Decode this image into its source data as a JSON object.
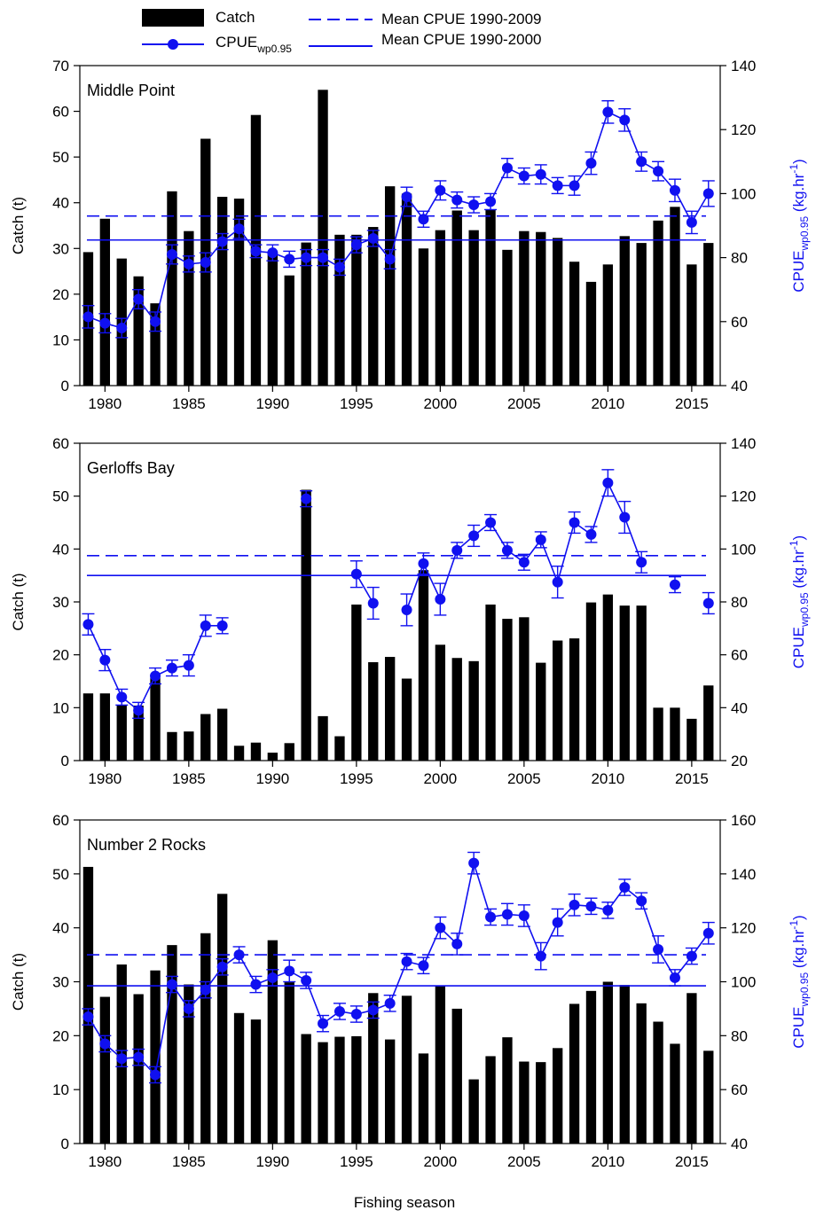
{
  "figure": {
    "xlabel": "Fishing season",
    "legend": {
      "catch": "Catch",
      "cpue_main": "CPUE",
      "cpue_sub": "wp0.95",
      "mean_long": "Mean CPUE 1990-2009",
      "mean_short": "Mean CPUE 1990-2000"
    },
    "ylabel_left": "Catch (t)",
    "ylabel_right": {
      "main": "CPUE",
      "sub": "wp0.95",
      "unit_open": " (kg.hr",
      "unit_sup": "-1",
      "unit_close": ")"
    },
    "colors": {
      "bars": "#000000",
      "cpue": "#1010f0"
    }
  },
  "chart_data": [
    {
      "type": "bar",
      "title": "Middle Point",
      "x": [
        1979,
        1980,
        1981,
        1982,
        1983,
        1984,
        1985,
        1986,
        1987,
        1988,
        1989,
        1990,
        1991,
        1992,
        1993,
        1994,
        1995,
        1996,
        1997,
        1998,
        1999,
        2000,
        2001,
        2002,
        2003,
        2004,
        2005,
        2006,
        2007,
        2008,
        2009,
        2010,
        2011,
        2012,
        2013,
        2014,
        2015,
        2016
      ],
      "xlim": [
        1978.5,
        2016.7
      ],
      "xticks": [
        1980,
        1985,
        1990,
        1995,
        2000,
        2005,
        2010,
        2015
      ],
      "catch": [
        29.2,
        36.5,
        27.8,
        23.9,
        18,
        42.5,
        33.8,
        54,
        41.3,
        40.9,
        59.2,
        29.3,
        24.1,
        31.3,
        64.7,
        33,
        33,
        34.7,
        43.6,
        42,
        30,
        34,
        38.3,
        34,
        38.5,
        29.7,
        33.8,
        33.6,
        32.3,
        27.1,
        22.7,
        26.5,
        32.7,
        31.2,
        36.1,
        39.1,
        26.5,
        31.2
      ],
      "ylim_left": [
        0,
        70
      ],
      "yticks_left": [
        0,
        10,
        20,
        30,
        40,
        50,
        60,
        70
      ],
      "cpue": [
        61.5,
        59.5,
        58,
        67,
        60,
        81,
        78,
        78.5,
        85,
        89,
        82,
        81.5,
        79.5,
        80,
        80,
        77,
        84,
        86,
        79.5,
        99,
        92,
        101,
        98,
        96.5,
        97.5,
        108,
        105.5,
        106,
        102.5,
        102.5,
        109.5,
        125.5,
        123,
        110,
        107,
        101,
        91,
        100
      ],
      "cpue_err": [
        3.5,
        3,
        3,
        3,
        3,
        3,
        2.5,
        3,
        2.5,
        3,
        2,
        2.5,
        2.5,
        2.5,
        2.5,
        2.5,
        2.5,
        2.5,
        3,
        3,
        2.5,
        3,
        2.5,
        2.5,
        2.5,
        3,
        2.5,
        3,
        2.5,
        3,
        3.5,
        3.5,
        3.5,
        3,
        3,
        3.5,
        3.5,
        4
      ],
      "ylim_right": [
        40,
        140
      ],
      "yticks_right": [
        40,
        60,
        80,
        100,
        120,
        140
      ],
      "mean_long": 93,
      "mean_short": 85.5
    },
    {
      "type": "bar",
      "title": "Gerloffs Bay",
      "x": [
        1979,
        1980,
        1981,
        1982,
        1983,
        1984,
        1985,
        1986,
        1987,
        1988,
        1989,
        1990,
        1991,
        1992,
        1993,
        1994,
        1995,
        1996,
        1997,
        1998,
        1999,
        2000,
        2001,
        2002,
        2003,
        2004,
        2005,
        2006,
        2007,
        2008,
        2009,
        2010,
        2011,
        2012,
        2013,
        2014,
        2015,
        2016
      ],
      "xlim": [
        1978.5,
        2016.7
      ],
      "xticks": [
        1980,
        1985,
        1990,
        1995,
        2000,
        2005,
        2010,
        2015
      ],
      "catch": [
        12.7,
        12.7,
        10.4,
        10.4,
        15.7,
        5.4,
        5.5,
        8.8,
        9.8,
        2.8,
        3.4,
        1.5,
        3.3,
        51.2,
        8.4,
        4.6,
        29.5,
        18.6,
        19.6,
        15.5,
        36,
        21.9,
        19.4,
        18.8,
        29.5,
        26.8,
        27.1,
        18.5,
        22.7,
        23.1,
        29.9,
        31.4,
        29.3,
        29.3,
        10,
        10,
        7.9,
        14.2
      ],
      "ylim_left": [
        0,
        60
      ],
      "yticks_left": [
        0,
        10,
        20,
        30,
        40,
        50,
        60
      ],
      "cpue": [
        71.5,
        58,
        44,
        39,
        52,
        55,
        56,
        71,
        71,
        null,
        null,
        null,
        null,
        119,
        null,
        null,
        90.5,
        79.5,
        null,
        77,
        94.5,
        81,
        99.5,
        105,
        110,
        99.5,
        95,
        103.5,
        87.5,
        110,
        105.5,
        125,
        112,
        95,
        null,
        86.5,
        null,
        79.5
      ],
      "cpue_err": [
        4,
        4,
        3,
        3,
        3,
        3,
        4,
        4,
        3,
        null,
        null,
        null,
        null,
        3,
        null,
        null,
        5,
        6,
        null,
        6,
        4,
        6,
        3,
        4,
        3,
        3,
        3,
        3,
        6,
        4,
        3,
        5,
        6,
        4,
        null,
        3,
        null,
        4
      ],
      "ylim_right": [
        20,
        140
      ],
      "yticks_right": [
        20,
        40,
        60,
        80,
        100,
        120,
        140
      ],
      "mean_long": 97.5,
      "mean_short": 90
    },
    {
      "type": "bar",
      "title": "Number 2 Rocks",
      "x": [
        1979,
        1980,
        1981,
        1982,
        1983,
        1984,
        1985,
        1986,
        1987,
        1988,
        1989,
        1990,
        1991,
        1992,
        1993,
        1994,
        1995,
        1996,
        1997,
        1998,
        1999,
        2000,
        2001,
        2002,
        2003,
        2004,
        2005,
        2006,
        2007,
        2008,
        2009,
        2010,
        2011,
        2012,
        2013,
        2014,
        2015,
        2016
      ],
      "xlim": [
        1978.5,
        2016.7
      ],
      "xticks": [
        1980,
        1985,
        1990,
        1995,
        2000,
        2005,
        2010,
        2015
      ],
      "catch": [
        51.3,
        27.2,
        33.2,
        27.7,
        32.1,
        36.8,
        29.5,
        39,
        46.3,
        24.2,
        23,
        37.7,
        29.9,
        20.3,
        18.8,
        19.8,
        19.9,
        27.9,
        19.3,
        27.4,
        16.7,
        29.3,
        25,
        11.9,
        16.2,
        19.7,
        15.2,
        15.1,
        17.7,
        25.9,
        28.3,
        30,
        29.4,
        26,
        22.6,
        18.5,
        27.9,
        17.2
      ],
      "ylim_left": [
        0,
        60
      ],
      "yticks_left": [
        0,
        10,
        20,
        30,
        40,
        50,
        60
      ],
      "cpue": [
        87,
        77,
        71.5,
        72,
        65.5,
        99,
        90,
        97,
        105.5,
        110,
        99,
        101.5,
        104,
        100.5,
        84.5,
        89,
        88,
        89.5,
        92,
        107.5,
        106,
        120,
        114,
        144,
        124,
        125,
        124.5,
        109.5,
        122,
        128.5,
        128,
        126.5,
        135,
        130,
        112,
        101.5,
        109.5,
        118
      ],
      "cpue_err": [
        3,
        3,
        3,
        3,
        3,
        3,
        3,
        3,
        3,
        3,
        3,
        3,
        4,
        3,
        3,
        3,
        3,
        3,
        3,
        3,
        3,
        4,
        4,
        4,
        3,
        4,
        4,
        5,
        5,
        4,
        3,
        3,
        3,
        3,
        5,
        3,
        3,
        4
      ],
      "ylim_right": [
        40,
        160
      ],
      "yticks_right": [
        40,
        60,
        80,
        100,
        120,
        140,
        160
      ],
      "mean_long": 110,
      "mean_short": 98.5
    }
  ]
}
